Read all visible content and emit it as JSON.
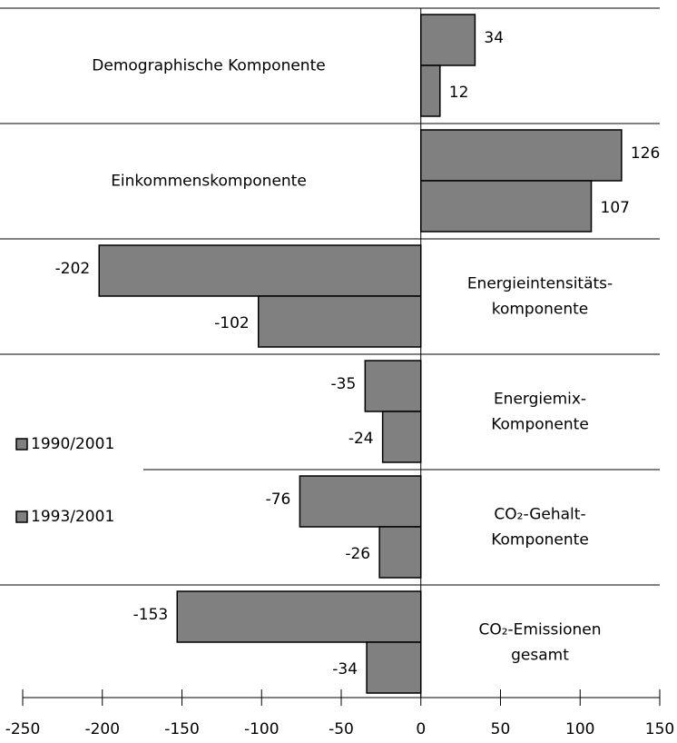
{
  "chart_data": {
    "type": "hbar",
    "categories": [
      "Demographische Komponente",
      "Einkommenskomponente",
      "Energieintensitäts-\nkomponente",
      "Energiemix-\nKomponente",
      "CO₂-Gehalt-\nKomponente",
      "CO₂-Emissionen\ngesamt"
    ],
    "series": [
      {
        "name": "1990/2001",
        "color": "#808080",
        "values": [
          34,
          126,
          -202,
          -35,
          -76,
          -153
        ]
      },
      {
        "name": "1993/2001",
        "color": "#808080",
        "values": [
          12,
          107,
          -102,
          -24,
          -26,
          -34
        ]
      }
    ],
    "xlim": [
      -250,
      150
    ],
    "xticks": [
      -250,
      -200,
      -150,
      -100,
      -50,
      0,
      50,
      100,
      150
    ]
  }
}
